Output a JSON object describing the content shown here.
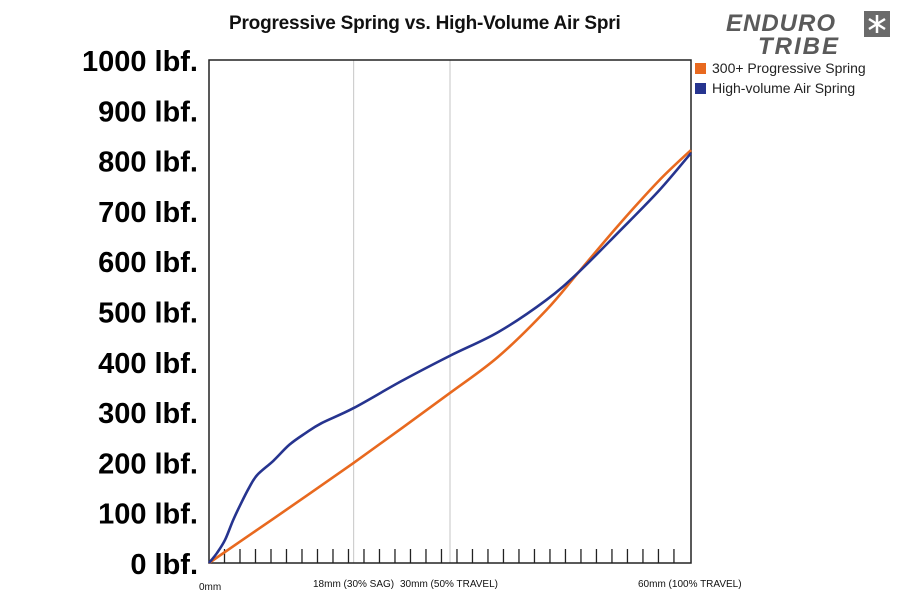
{
  "chart_data": {
    "type": "line",
    "title": "Progressive Spring vs. High-Volume Air Spri",
    "xlabel": "",
    "ylabel": "",
    "xlim": [
      0,
      60
    ],
    "ylim": [
      0,
      1000
    ],
    "grid": "vertical lines at 18mm and 30mm",
    "legend_position": "top-right",
    "y_ticks": [
      {
        "value": 0,
        "label": "0 lbf."
      },
      {
        "value": 100,
        "label": "100 lbf."
      },
      {
        "value": 200,
        "label": "200 lbf."
      },
      {
        "value": 300,
        "label": "300 lbf."
      },
      {
        "value": 400,
        "label": "400 lbf."
      },
      {
        "value": 500,
        "label": "500 lbf."
      },
      {
        "value": 600,
        "label": "600 lbf."
      },
      {
        "value": 700,
        "label": "700 lbf."
      },
      {
        "value": 800,
        "label": "800 lbf."
      },
      {
        "value": 900,
        "label": "900 lbf."
      },
      {
        "value": 1000,
        "label": "1000 lbf."
      }
    ],
    "x_tick_labels": [
      {
        "value": 0,
        "label": "0mm"
      },
      {
        "value": 18,
        "label": "18mm (30% SAG)"
      },
      {
        "value": 30,
        "label": "30mm (50% TRAVEL)"
      },
      {
        "value": 60,
        "label": "60mm (100% TRAVEL)"
      }
    ],
    "x_minor_tick_count": 31,
    "series": [
      {
        "name": "300+ Progressive Spring",
        "color": "#e8691f",
        "x": [
          0,
          6,
          12,
          18,
          24,
          30,
          36,
          42,
          46,
          51,
          56,
          60
        ],
        "y": [
          0,
          66,
          132,
          199,
          268,
          338,
          410,
          503,
          578,
          672,
          760,
          821
        ]
      },
      {
        "name": "High-volume Air Spring",
        "color": "#26348f",
        "x": [
          0,
          1,
          2,
          3,
          4,
          5,
          6,
          8,
          10,
          12,
          14,
          18,
          24,
          30,
          36,
          42,
          46,
          51,
          56,
          60
        ],
        "y": [
          0,
          20,
          46,
          85,
          119,
          150,
          175,
          203,
          235,
          258,
          278,
          308,
          362,
          412,
          459,
          523,
          578,
          658,
          740,
          815
        ]
      }
    ]
  },
  "logo": {
    "line1": "ENDURO",
    "line2": "TRIBE"
  }
}
